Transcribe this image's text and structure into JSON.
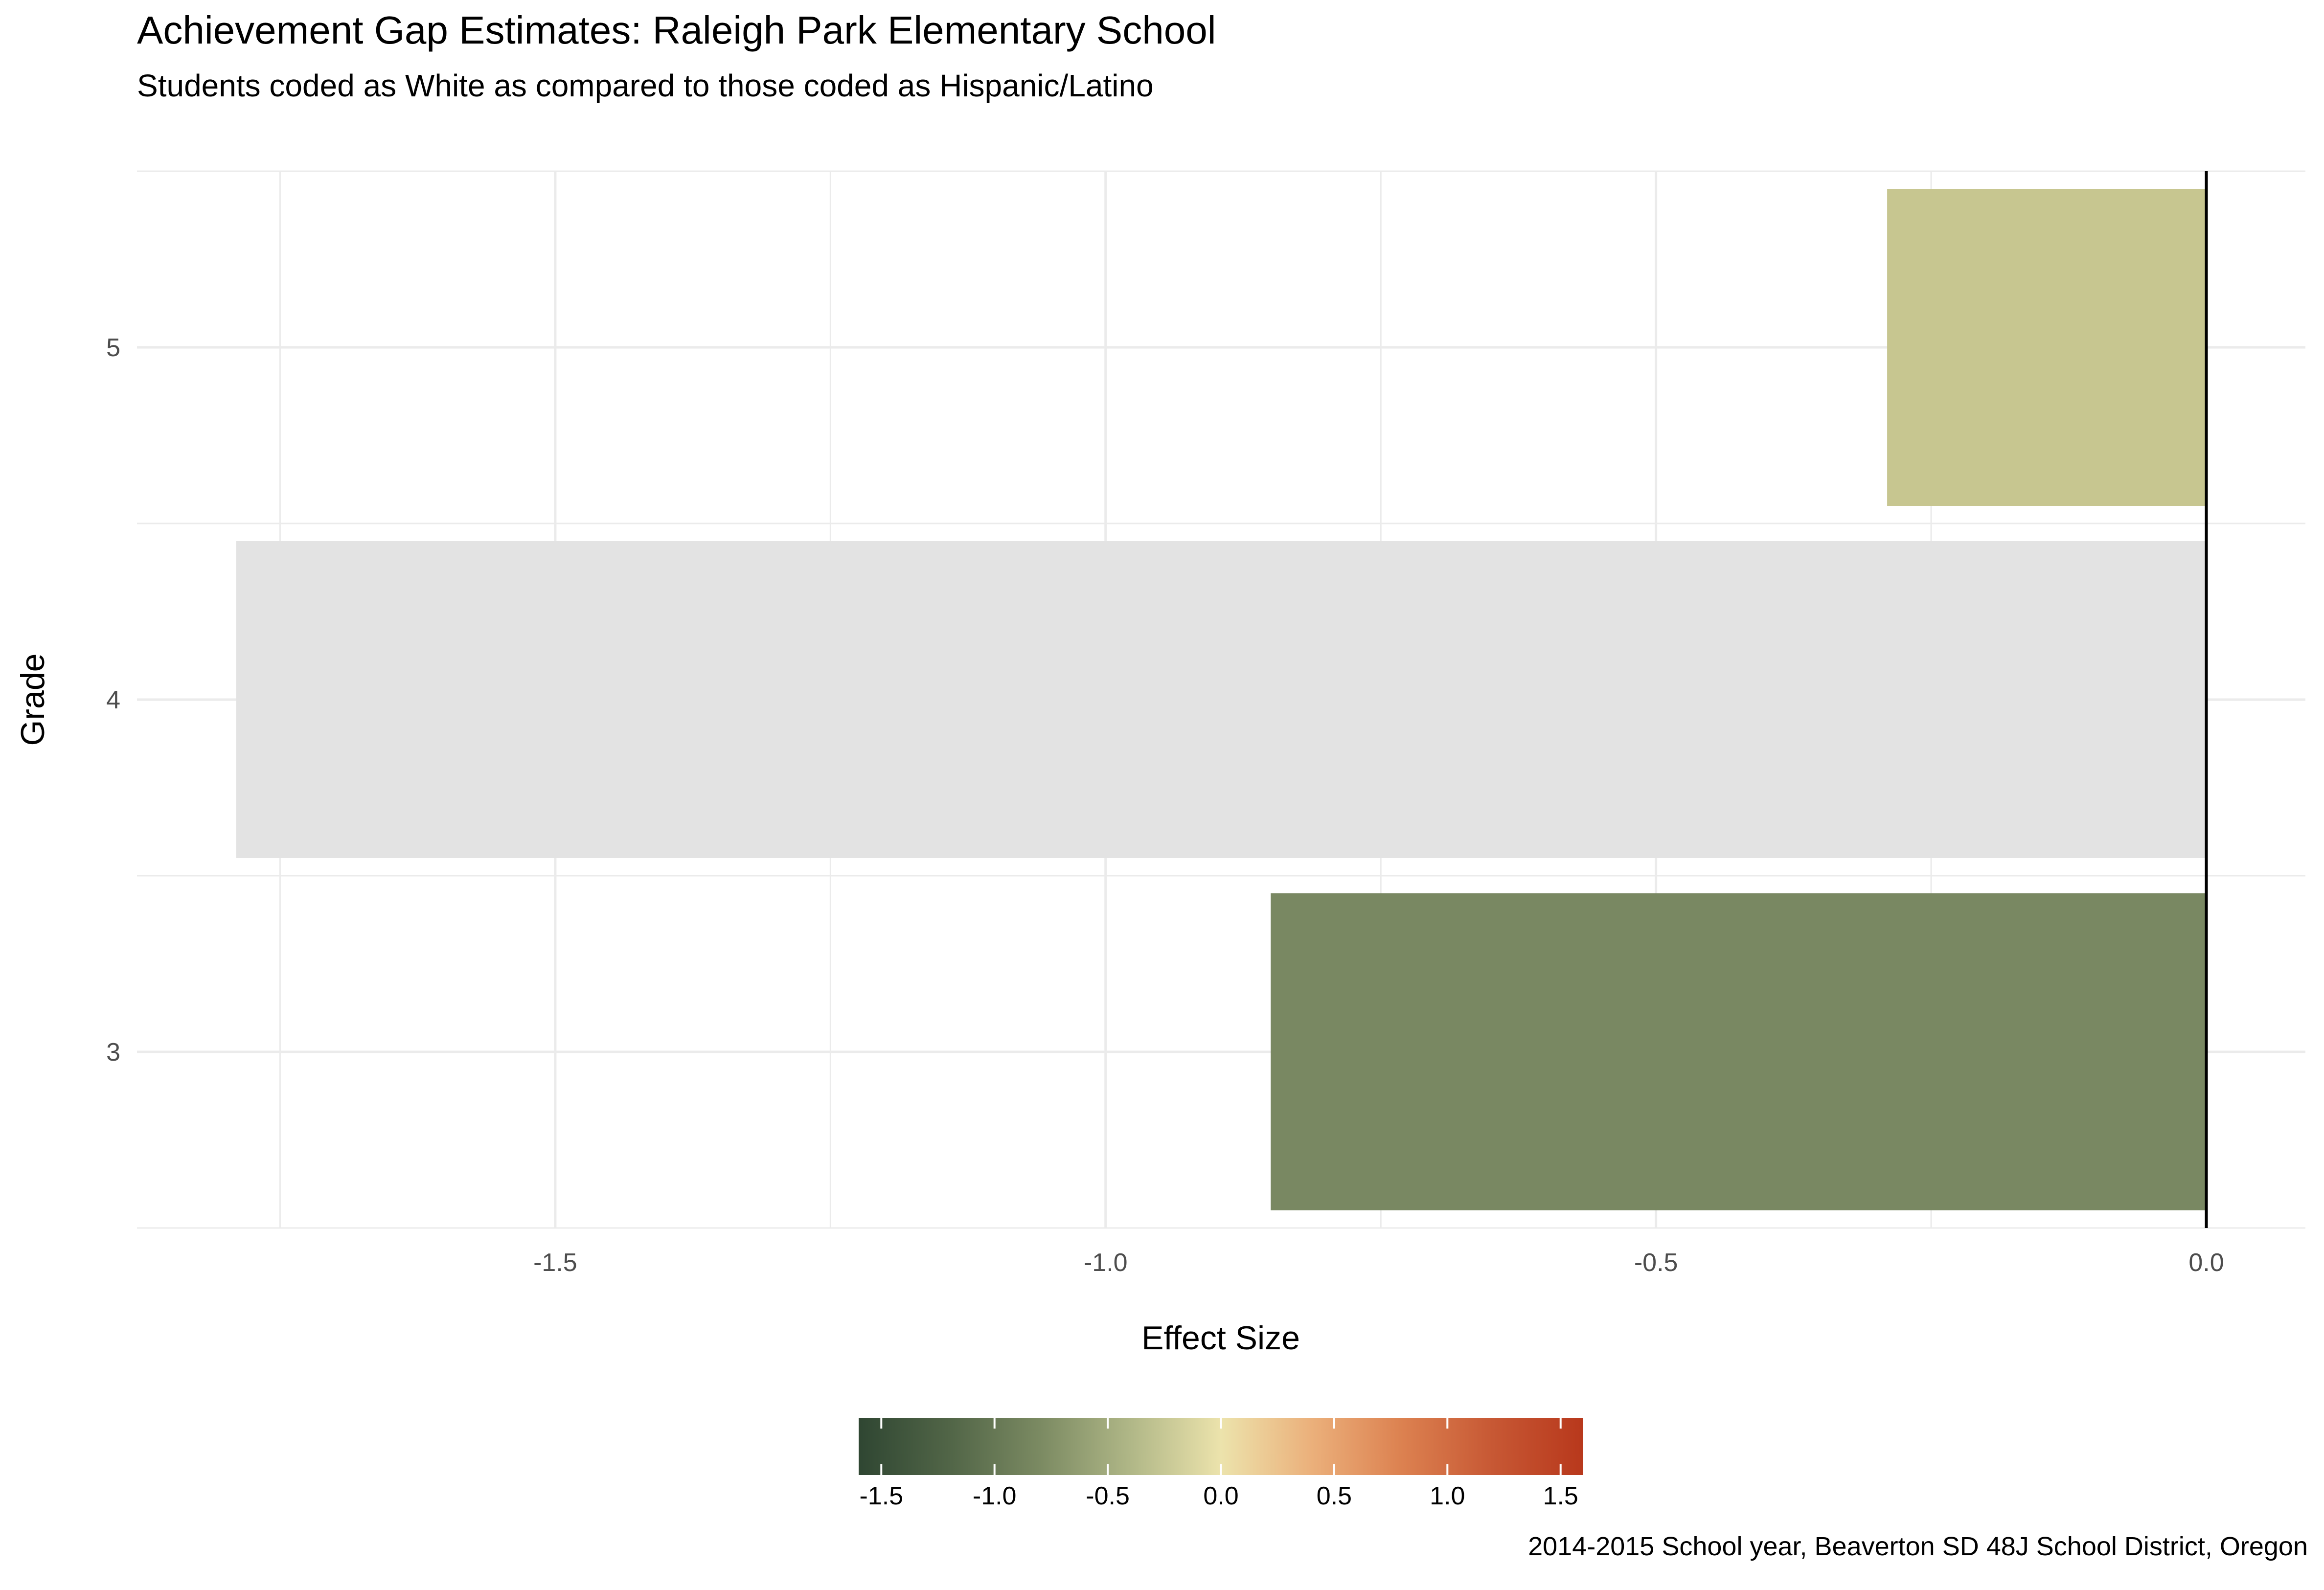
{
  "chart_data": {
    "type": "bar",
    "orientation": "horizontal",
    "title": "Achievement Gap Estimates: Raleigh Park Elementary School",
    "subtitle": "Students coded as White as compared to those coded as Hispanic/Latino",
    "caption": "2014-2015 School year, Beaverton SD 48J School District, Oregon",
    "xlabel": "Effect Size",
    "ylabel": "Grade",
    "categories": [
      "3",
      "4",
      "5"
    ],
    "values": [
      -0.85,
      -1.79,
      -0.29
    ],
    "bar_colors": [
      "#798862",
      "#e3e3e3",
      "#c7c690"
    ],
    "xlim": [
      -1.88,
      0.09
    ],
    "x_ticks": [
      -1.5,
      -1.0,
      -0.5,
      0.0
    ],
    "x_tick_labels": [
      "-1.5",
      "-1.0",
      "-0.5",
      "0.0"
    ],
    "reference_line_x": 0,
    "grid": true,
    "legend": {
      "type": "colorbar",
      "placement": "bottom",
      "range": [
        -1.6,
        1.6
      ],
      "ticks": [
        -1.5,
        -1.0,
        -0.5,
        0.0,
        0.5,
        1.0,
        1.5
      ],
      "tick_labels": [
        "-1.5",
        "-1.0",
        "-0.5",
        "0.0",
        "0.5",
        "1.0",
        "1.5"
      ],
      "colors": [
        "#2f4632",
        "#516547",
        "#7b8a62",
        "#b0b787",
        "#ece3ac",
        "#ebb07b",
        "#dc8150",
        "#c75834",
        "#b8381c"
      ]
    }
  }
}
